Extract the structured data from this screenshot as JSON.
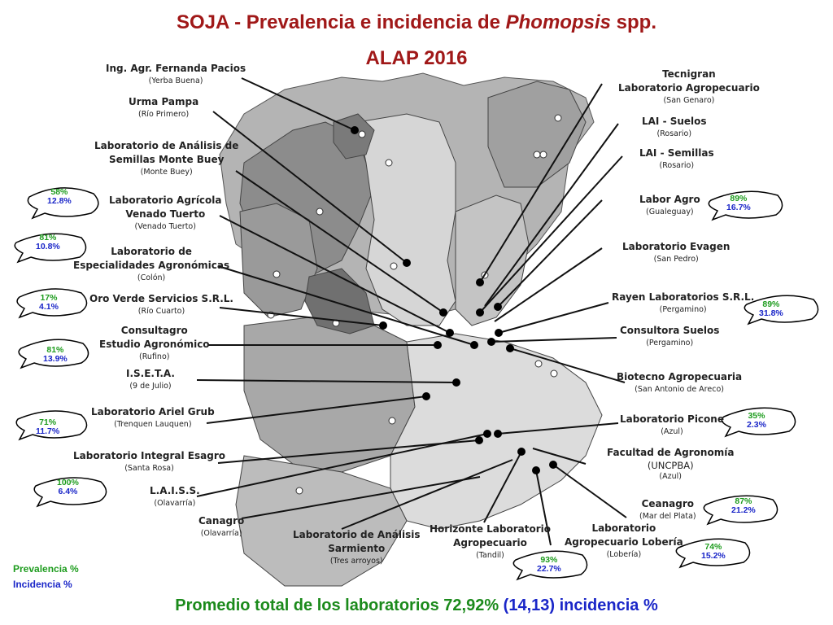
{
  "title": {
    "main": "SOJA - Prevalencia e incidencia de ",
    "italic": "Phomopsis",
    "suffix": " spp.",
    "subtitle": "ALAP 2016"
  },
  "labs": [
    {
      "name": "Ing. Agr. Fernanda Pacios",
      "city": "(Yerba Buena)"
    },
    {
      "name": "Urma Pampa",
      "city": "(Río Primero)"
    },
    {
      "name": "Laboratorio de Análisis de",
      "name2": "Semillas Monte Buey",
      "city": "(Monte Buey)"
    },
    {
      "name": "Laboratorio Agrícola",
      "name2": "Venado Tuerto",
      "city": "(Venado Tuerto)"
    },
    {
      "name": "Laboratorio de",
      "name2": "Especialidades Agronómicas",
      "city": "(Colón)"
    },
    {
      "name": "Oro Verde Servicios S.R.L.",
      "city": "(Río Cuarto)"
    },
    {
      "name": "Consultagro",
      "name2": "Estudio Agronómico",
      "city": "(Rufino)"
    },
    {
      "name": "I.S.E.T.A.",
      "city": "(9 de Julio)"
    },
    {
      "name": "Laboratorio Ariel Grub",
      "city": "(Trenquen Lauquen)"
    },
    {
      "name": "Laboratorio Integral Esagro",
      "city": "(Santa Rosa)"
    },
    {
      "name": "L.A.I.S.S.",
      "city": "(Olavarría)"
    },
    {
      "name": "Canagro",
      "city": "(Olavarría)"
    },
    {
      "name": "Laboratorio de Análisis",
      "name2": "Sarmiento",
      "city": "(Tres arroyos)"
    },
    {
      "name": "Horizonte Laboratorio",
      "name2": "Agropecuario",
      "city": "(Tandil)"
    },
    {
      "name": "Laboratorio",
      "name2": "Agropecuario Lobería",
      "city": "(Lobería)"
    },
    {
      "name": "Ceanagro",
      "city": "(Mar del Plata)"
    },
    {
      "name": "Facultad de Agronomía",
      "name2": "(UNCPBA)",
      "city": "(Azul)"
    },
    {
      "name": "Laboratorio Picone",
      "city": "(Azul)"
    },
    {
      "name": "Biotecno Agropecuaria",
      "city": "(San  Antonio de Areco)"
    },
    {
      "name": "Consultora Suelos",
      "city": "(Pergamino)"
    },
    {
      "name": "Rayen Laboratorios S.R.L.",
      "city": "(Pergamino)"
    },
    {
      "name": "Laboratorio Evagen",
      "city": "(San Pedro)"
    },
    {
      "name": "Labor Agro",
      "city": "(Gualeguay)"
    },
    {
      "name": "LAI - Semillas",
      "city": "(Rosario)"
    },
    {
      "name": "LAI - Suelos",
      "city": "(Rosario)"
    },
    {
      "name": "Tecnigran",
      "name2": "Laboratorio Agropecuario",
      "city": "(San Genaro)"
    }
  ],
  "bubbles": [
    {
      "prevalencia": "58%",
      "incidencia": "12.8%"
    },
    {
      "prevalencia": "81%",
      "incidencia": "10.8%"
    },
    {
      "prevalencia": "17%",
      "incidencia": "4.1%"
    },
    {
      "prevalencia": "81%",
      "incidencia": "13.9%"
    },
    {
      "prevalencia": "71%",
      "incidencia": "11.7%"
    },
    {
      "prevalencia": "100%",
      "incidencia": "6.4%"
    },
    {
      "prevalencia": "89%",
      "incidencia": "16.7%"
    },
    {
      "prevalencia": "89%",
      "incidencia": "31.8%"
    },
    {
      "prevalencia": "35%",
      "incidencia": "2.3%"
    },
    {
      "prevalencia": "87%",
      "incidencia": "21.2%"
    },
    {
      "prevalencia": "74%",
      "incidencia": "15.2%"
    },
    {
      "prevalencia": "93%",
      "incidencia": "22.7%"
    }
  ],
  "legend": {
    "prevalencia": "Prevalencia %",
    "incidencia": "Incidencia %"
  },
  "footer": {
    "text": "Promedio total de los laboratorios 72,92% ",
    "incidencia": "(14,13) incidencia %"
  },
  "colors": {
    "title": "#a01818",
    "prevalencia": "#1e9c1e",
    "incidencia": "#1a26c8"
  }
}
